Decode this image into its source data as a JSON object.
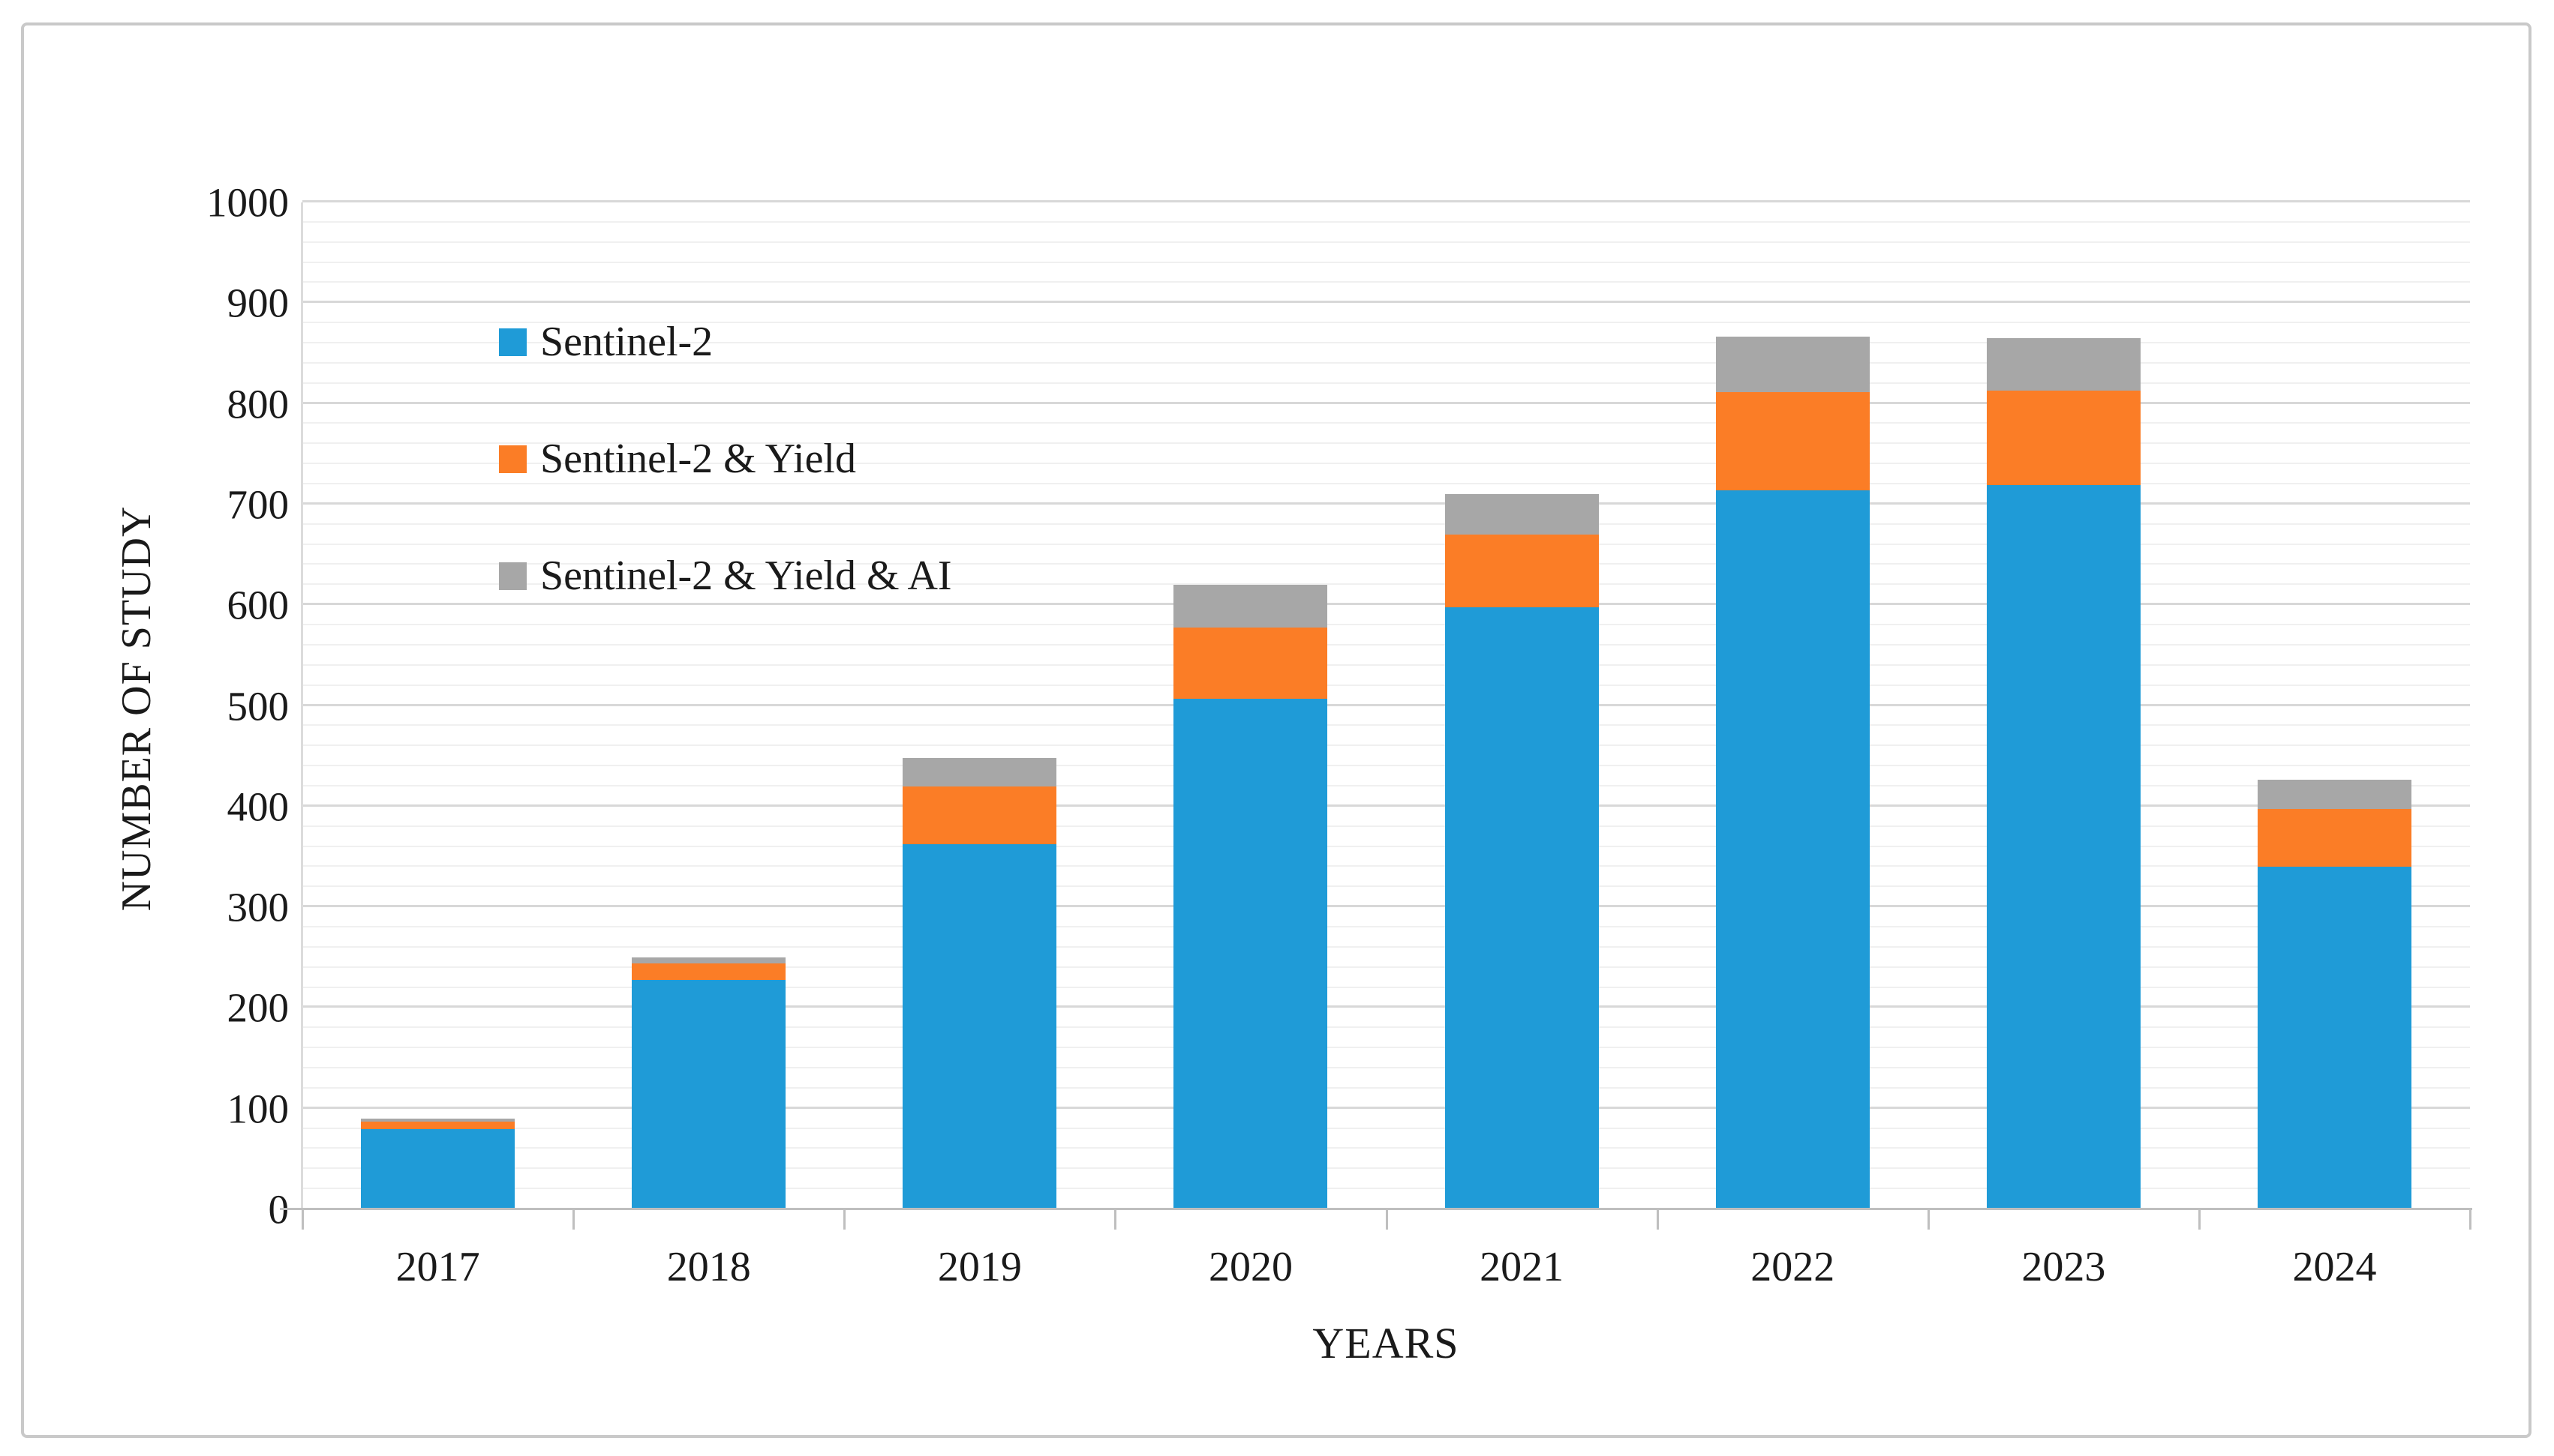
{
  "figure": {
    "background": "#ffffff",
    "border_color": "#c9c9c9"
  },
  "chart_data": {
    "type": "bar",
    "stacked": true,
    "title": "",
    "xlabel": "YEARS",
    "ylabel": "NUMBER OF STUDY",
    "categories": [
      "2017",
      "2018",
      "2019",
      "2020",
      "2021",
      "2022",
      "2023",
      "2024"
    ],
    "series": [
      {
        "name": "Sentinel-2",
        "color": "#1F9BD7",
        "values": [
          80,
          228,
          363,
          507,
          598,
          714,
          719,
          340
        ]
      },
      {
        "name": "Sentinel-2 & Yield",
        "color": "#FB7D26",
        "values": [
          7,
          16,
          57,
          71,
          72,
          98,
          94,
          58
        ]
      },
      {
        "name": "Sentinel-2 & Yield & AI",
        "color": "#A7A7A7",
        "values": [
          3,
          6,
          28,
          42,
          40,
          55,
          52,
          29
        ]
      }
    ],
    "stack_totals": [
      90,
      250,
      448,
      620,
      710,
      867,
      865,
      427
    ],
    "ylim": [
      0,
      1000
    ],
    "y_major_step": 100,
    "y_minor_step": 20,
    "y_tick_labels": [
      "0",
      "100",
      "200",
      "300",
      "400",
      "500",
      "600",
      "700",
      "800",
      "900",
      "1000"
    ],
    "grid": "horizontal-minor-and-major",
    "legend_position": "upper-left-inside",
    "axis_color": "#bfbfbf",
    "major_grid_color": "#d8d8d8",
    "minor_grid_color": "#f0f0f0"
  }
}
